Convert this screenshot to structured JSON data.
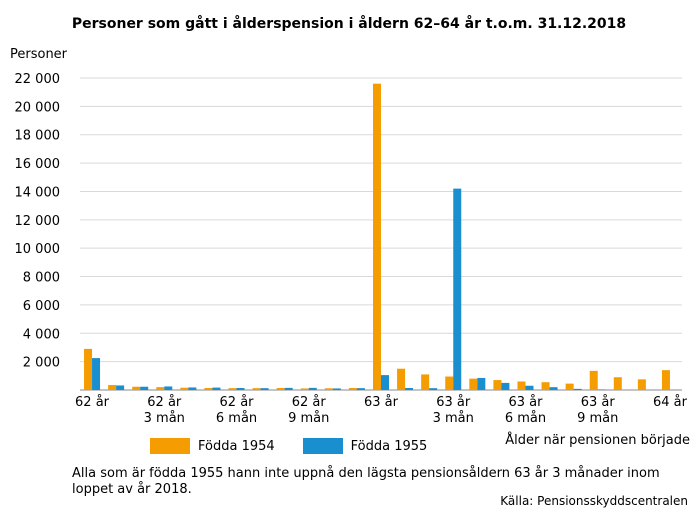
{
  "chart_data": {
    "type": "bar",
    "title": "Personer som gått i ålderspension i åldern 62–64 år t.o.m. 31.12.2018",
    "ylabel": "Personer",
    "xlabel": "Ålder när pensionen började",
    "ylim": [
      0,
      22000
    ],
    "yticks": [
      "",
      "2 000",
      "4 000",
      "6 000",
      "8 000",
      "10 000",
      "12 000",
      "14 000",
      "16 000",
      "18 000",
      "20 000",
      "22 000"
    ],
    "tick_labels": [
      {
        "index": 0,
        "lines": [
          "62 år"
        ]
      },
      {
        "index": 3,
        "lines": [
          "62 år",
          "3 mån"
        ]
      },
      {
        "index": 6,
        "lines": [
          "62 år",
          "6 mån"
        ]
      },
      {
        "index": 9,
        "lines": [
          "62 år",
          "9 mån"
        ]
      },
      {
        "index": 12,
        "lines": [
          "63 år"
        ]
      },
      {
        "index": 15,
        "lines": [
          "63 år",
          "3 mån"
        ]
      },
      {
        "index": 18,
        "lines": [
          "63 år",
          "6 mån"
        ]
      },
      {
        "index": 21,
        "lines": [
          "63 år",
          "9 mån"
        ]
      },
      {
        "index": 24,
        "lines": [
          "64 år"
        ]
      }
    ],
    "series": [
      {
        "name": "Födda 1954",
        "color": "#f59c00",
        "values": [
          2900,
          350,
          230,
          200,
          160,
          140,
          130,
          130,
          140,
          110,
          120,
          140,
          21600,
          1500,
          1100,
          950,
          800,
          700,
          600,
          550,
          450,
          1350,
          900,
          750,
          1400
        ]
      },
      {
        "name": "Födda 1955",
        "color": "#1a8fcf",
        "values": [
          2250,
          320,
          230,
          250,
          180,
          170,
          140,
          130,
          150,
          150,
          110,
          130,
          1050,
          140,
          130,
          14200,
          850,
          500,
          300,
          200,
          80,
          40,
          0,
          0,
          0
        ]
      }
    ]
  },
  "note": "Alla som är födda 1955 hann inte uppnå den lägsta pensionsåldern 63 år 3 månader inom loppet av år 2018.",
  "source": "Källa: Pensionsskyddscentralen"
}
